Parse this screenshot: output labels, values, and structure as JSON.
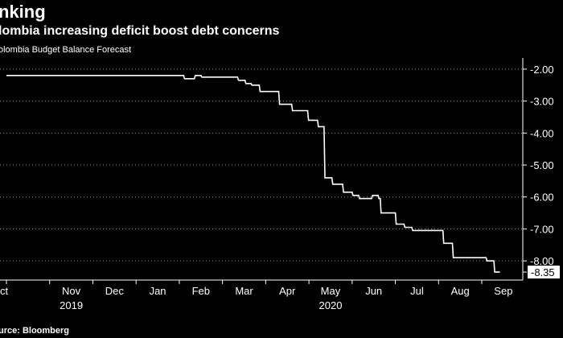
{
  "header": {
    "title": "nking",
    "subtitle": "lombia increasing deficit boost debt concerns",
    "series_label": "olombia Budget Balance Forecast"
  },
  "footer": {
    "source": "urce: Bloomberg"
  },
  "colors": {
    "background": "#000000",
    "line": "#ffffff",
    "text": "#ffffff",
    "label_bg": "#ffffff",
    "label_text": "#000000"
  },
  "chart_data": {
    "type": "line",
    "title": "nking",
    "subtitle": "lombia increasing deficit boost debt concerns",
    "xlabel": "",
    "ylabel": "",
    "ylim": [
      -8.6,
      -1.65
    ],
    "yticks": [
      -2.0,
      -3.0,
      -4.0,
      -5.0,
      -6.0,
      -7.0,
      -8.0
    ],
    "ytick_labels": [
      "-2.00",
      "-3.00",
      "-4.00",
      "-5.00",
      "-6.00",
      "-7.00",
      "-8.00"
    ],
    "xlim": [
      0,
      11.8
    ],
    "xticks": [
      {
        "pos": 0.0,
        "label": "ct"
      },
      {
        "pos": 1.0,
        "label": "Nov"
      },
      {
        "pos": 2.0,
        "label": "Dec"
      },
      {
        "pos": 3.0,
        "label": "Jan"
      },
      {
        "pos": 4.0,
        "label": "Feb"
      },
      {
        "pos": 5.0,
        "label": "Mar"
      },
      {
        "pos": 6.0,
        "label": "Apr"
      },
      {
        "pos": 7.0,
        "label": "May"
      },
      {
        "pos": 8.0,
        "label": "Jun"
      },
      {
        "pos": 9.0,
        "label": "Jul"
      },
      {
        "pos": 10.0,
        "label": "Aug"
      },
      {
        "pos": 11.0,
        "label": "Sep"
      }
    ],
    "year_labels": [
      {
        "pos": 1.0,
        "label": "2019"
      },
      {
        "pos": 7.0,
        "label": "2020"
      }
    ],
    "last_value_label": "-8.35",
    "series": [
      {
        "name": "Colombia Budget Balance Forecast",
        "x": [
          0.0,
          4.1,
          4.12,
          4.35,
          4.37,
          4.5,
          4.52,
          5.35,
          5.37,
          5.52,
          5.54,
          5.66,
          5.68,
          5.85,
          5.87,
          6.3,
          6.32,
          6.6,
          6.62,
          6.75,
          6.77,
          6.97,
          6.99,
          7.2,
          7.22,
          7.35,
          7.37,
          7.53,
          7.55,
          7.78,
          7.8,
          8.0,
          8.02,
          8.15,
          8.17,
          8.45,
          8.47,
          8.6,
          8.62,
          8.65,
          8.67,
          9.0,
          9.02,
          9.2,
          9.22,
          9.38,
          9.4,
          9.55,
          9.57,
          10.1,
          10.12,
          10.32,
          10.34,
          10.85,
          10.87,
          11.0,
          11.02,
          11.1,
          11.12,
          11.28,
          11.3,
          11.42
        ],
        "y": [
          -2.2,
          -2.2,
          -2.3,
          -2.3,
          -2.2,
          -2.2,
          -2.25,
          -2.25,
          -2.35,
          -2.35,
          -2.45,
          -2.45,
          -2.5,
          -2.5,
          -2.7,
          -2.7,
          -3.1,
          -3.1,
          -3.3,
          -3.3,
          -3.3,
          -3.3,
          -3.6,
          -3.6,
          -3.8,
          -3.8,
          -5.4,
          -5.4,
          -5.6,
          -5.6,
          -5.85,
          -5.85,
          -5.95,
          -5.95,
          -6.05,
          -6.05,
          -5.95,
          -5.95,
          -6.05,
          -6.05,
          -6.5,
          -6.5,
          -6.85,
          -6.85,
          -6.95,
          -6.95,
          -7.05,
          -7.05,
          -7.05,
          -7.05,
          -7.45,
          -7.45,
          -7.9,
          -7.9,
          -7.9,
          -7.9,
          -7.9,
          -7.9,
          -8.0,
          -8.0,
          -8.35,
          -8.35
        ]
      }
    ]
  }
}
